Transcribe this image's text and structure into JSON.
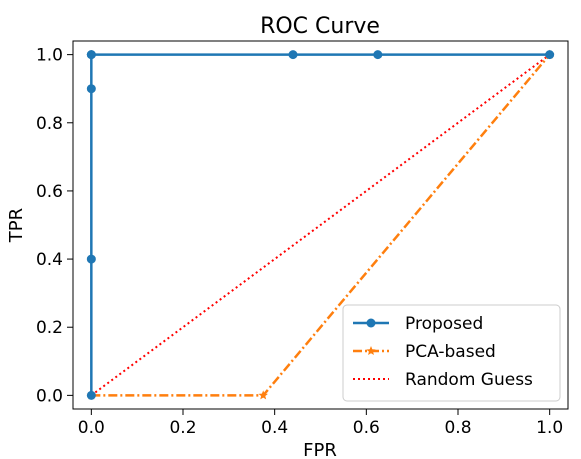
{
  "chart_data": {
    "type": "line",
    "title": "ROC Curve",
    "xlabel": "FPR",
    "ylabel": "TPR",
    "xlim": [
      -0.04,
      1.04
    ],
    "ylim": [
      -0.04,
      1.04
    ],
    "xticks": [
      0.0,
      0.2,
      0.4,
      0.6,
      0.8,
      1.0
    ],
    "yticks": [
      0.0,
      0.2,
      0.4,
      0.6,
      0.8,
      1.0
    ],
    "xtick_labels": [
      "0.0",
      "0.2",
      "0.4",
      "0.6",
      "0.8",
      "1.0"
    ],
    "ytick_labels": [
      "0.0",
      "0.2",
      "0.4",
      "0.6",
      "0.8",
      "1.0"
    ],
    "grid": false,
    "legend_position": "bottom-right",
    "series": [
      {
        "name": "Proposed",
        "color": "#1f77b4",
        "line_style": "solid",
        "marker": "circle",
        "x": [
          0.0,
          0.0,
          0.0,
          0.0,
          0.0,
          0.44,
          0.625,
          1.0
        ],
        "y": [
          0.0,
          0.4,
          0.9,
          1.0,
          1.0,
          1.0,
          1.0,
          1.0
        ]
      },
      {
        "name": "PCA-based",
        "color": "#ff7f0e",
        "line_style": "dashdot",
        "marker": "star",
        "x": [
          0.0,
          0.375,
          1.0
        ],
        "y": [
          0.0,
          0.0,
          1.0
        ]
      },
      {
        "name": "Random Guess",
        "color": "#ff0000",
        "line_style": "dotted",
        "marker": "none",
        "x": [
          0.0,
          1.0
        ],
        "y": [
          0.0,
          1.0
        ]
      }
    ]
  }
}
